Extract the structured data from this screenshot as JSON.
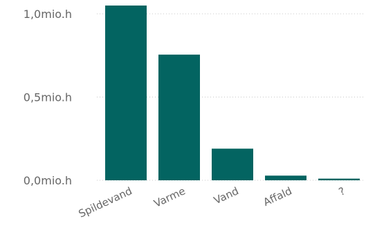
{
  "chart_data": {
    "type": "bar",
    "categories": [
      "Spildevand",
      "Varme",
      "Vand",
      "Affald",
      "?"
    ],
    "values": [
      1.05,
      0.755,
      0.19,
      0.028,
      0.01
    ],
    "yticks": [
      {
        "value": 0.0,
        "label": "0,0mio.h"
      },
      {
        "value": 0.5,
        "label": "0,5mio.h"
      },
      {
        "value": 1.0,
        "label": "1,0mio.h"
      }
    ],
    "ylim": [
      0,
      1.05
    ],
    "grid": true,
    "bar_color": "#036461",
    "title": "",
    "xlabel": "",
    "ylabel": ""
  }
}
